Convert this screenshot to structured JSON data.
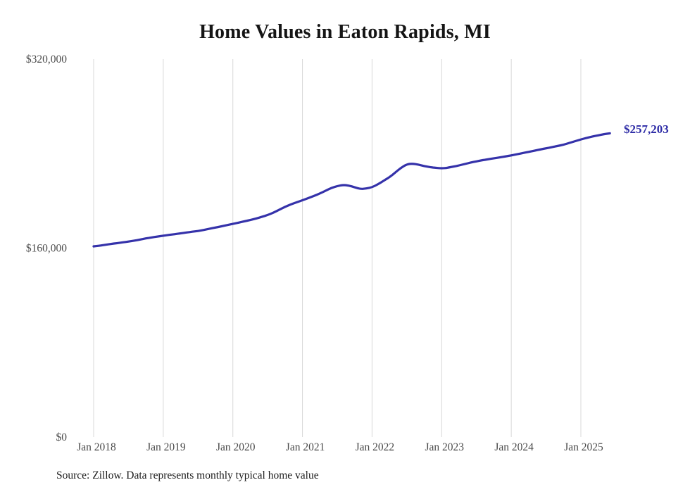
{
  "chart_data": {
    "type": "line",
    "title": "Home Values in Eaton Rapids, MI",
    "source_note": "Source: Zillow. Data represents monthly typical home value",
    "end_label": "$257,203",
    "final_value": 257203,
    "x_start": "Jan 2018",
    "x_end": "Jun 2025",
    "frequency": "monthly",
    "xtick_labels": [
      "Jan 2018",
      "Jan 2019",
      "Jan 2020",
      "Jan 2021",
      "Jan 2022",
      "Jan 2023",
      "Jan 2024",
      "Jan 2025"
    ],
    "xtick_month_indices": [
      0,
      12,
      24,
      36,
      48,
      60,
      72,
      84
    ],
    "yticks": [
      {
        "value": 0,
        "label": "$0"
      },
      {
        "value": 160000,
        "label": "$160,000"
      },
      {
        "value": 320000,
        "label": "$320,000"
      }
    ],
    "ylim": [
      0,
      320000
    ],
    "grid": "vertical-only",
    "grid_color": "#d8d8d8",
    "line_color": "#3532aa",
    "legend": "none",
    "series": [
      {
        "name": "Typical home value",
        "values": [
          161500,
          162100,
          162800,
          163500,
          164200,
          164900,
          165500,
          166300,
          167200,
          168200,
          169000,
          169800,
          170500,
          171200,
          171800,
          172500,
          173200,
          173900,
          174500,
          175400,
          176400,
          177400,
          178400,
          179500,
          180500,
          181600,
          182700,
          183800,
          185000,
          186500,
          188000,
          190000,
          192500,
          195000,
          197000,
          198800,
          200500,
          202300,
          204200,
          206300,
          208600,
          211000,
          212500,
          213500,
          213000,
          211500,
          210000,
          210500,
          211500,
          214000,
          217000,
          220000,
          224000,
          228000,
          231000,
          231500,
          230700,
          229500,
          228500,
          228000,
          227500,
          228000,
          229000,
          230000,
          231200,
          232400,
          233500,
          234400,
          235200,
          236000,
          236800,
          237600,
          238500,
          239500,
          240500,
          241500,
          242500,
          243500,
          244500,
          245500,
          246500,
          247500,
          249000,
          250500,
          252000,
          253300,
          254500,
          255500,
          256500,
          257203
        ]
      }
    ]
  }
}
